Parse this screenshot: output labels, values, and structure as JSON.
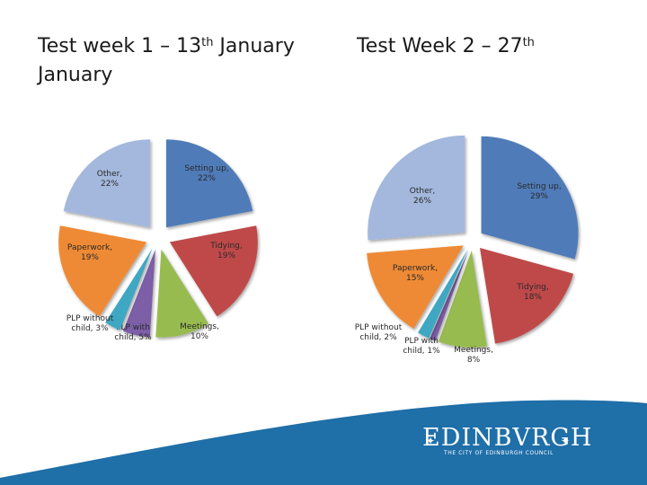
{
  "slide": {
    "title_left": {
      "main": "Test week 1 – 13",
      "sup": "th",
      "tail": " January",
      "line2": "January"
    },
    "title_right": {
      "main": "Test Week 2 – 27",
      "sup": "th"
    }
  },
  "logo": {
    "word": "EDINBVRGH",
    "sub": "THE CITY OF EDINBURGH COUNCIL"
  },
  "colors": {
    "setting_up": "#4f7bb8",
    "tidying": "#bf4a4a",
    "meetings": "#98bb4f",
    "plp_with_child": "#7b5ea6",
    "plp_without_child": "#3fa7c3",
    "paperwork": "#ee8a35",
    "other": "#a3b8dc",
    "footer": "#1f6fa8"
  },
  "chart_data": [
    {
      "type": "pie",
      "title": "Test week 1 – 13th January",
      "slices": [
        {
          "key": "setting_up",
          "label": "Setting up, 22%",
          "value": 22
        },
        {
          "key": "tidying",
          "label": "Tidying, 19%",
          "value": 19
        },
        {
          "key": "meetings",
          "label": "Meetings, 10%",
          "value": 10
        },
        {
          "key": "plp_with_child",
          "label": "PLP with child, 5%",
          "value": 5
        },
        {
          "key": "plp_without_child",
          "label": "PLP without child, 3%",
          "value": 3
        },
        {
          "key": "paperwork",
          "label": "Paperwork, 19%",
          "value": 19
        },
        {
          "key": "other",
          "label": "Other, 22%",
          "value": 22
        }
      ]
    },
    {
      "type": "pie",
      "title": "Test Week 2 – 27th",
      "slices": [
        {
          "key": "setting_up",
          "label": "Setting up, 29%",
          "value": 29
        },
        {
          "key": "tidying",
          "label": "Tidying, 18%",
          "value": 18
        },
        {
          "key": "meetings",
          "label": "Meetings, 8%",
          "value": 8
        },
        {
          "key": "plp_with_child",
          "label": "PLP with child, 1%",
          "value": 1
        },
        {
          "key": "plp_without_child",
          "label": "PLP without child, 2%",
          "value": 2
        },
        {
          "key": "paperwork",
          "label": "Paperwork, 15%",
          "value": 15
        },
        {
          "key": "other",
          "label": "Other, 26%",
          "value": 26
        }
      ]
    }
  ]
}
